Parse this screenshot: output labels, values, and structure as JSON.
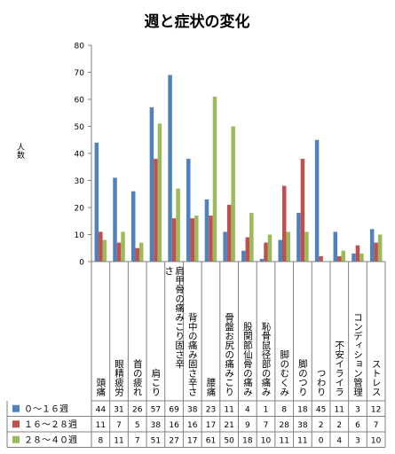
{
  "chart_data": {
    "type": "bar",
    "title": "週と症状の変化",
    "ylabel": "人数",
    "xlabel": "",
    "ylim": [
      0,
      80
    ],
    "yticks": [
      0,
      10,
      20,
      30,
      40,
      50,
      60,
      70,
      80
    ],
    "grid": false,
    "legend": "table-below",
    "categories": [
      "頭痛",
      "眼精疲労",
      "首の疲れ",
      "肩こり",
      "肩甲骨の痛みこり固さ辛さ",
      "背中の痛み固さ辛さ",
      "腰痛",
      "骨盤お尻の痛みこり",
      "股関節仙骨の痛み",
      "恥骨鼠径部の痛み",
      "脚のむくみ",
      "脚のつり",
      "つわり",
      "不安イライラ",
      "コンディション管理",
      "ストレス"
    ],
    "series": [
      {
        "name": "０～１６週",
        "color": "#4F81BD",
        "values": [
          44,
          31,
          26,
          57,
          69,
          38,
          23,
          11,
          4,
          1,
          8,
          18,
          45,
          11,
          3,
          12
        ]
      },
      {
        "name": "１６～２８週",
        "color": "#C0504D",
        "values": [
          11,
          7,
          5,
          38,
          16,
          16,
          17,
          21,
          9,
          7,
          28,
          38,
          2,
          2,
          6,
          7
        ]
      },
      {
        "name": "２８～４０週",
        "color": "#9BBB59",
        "values": [
          8,
          11,
          7,
          51,
          27,
          17,
          61,
          50,
          18,
          10,
          11,
          11,
          0,
          4,
          3,
          10
        ]
      }
    ]
  }
}
